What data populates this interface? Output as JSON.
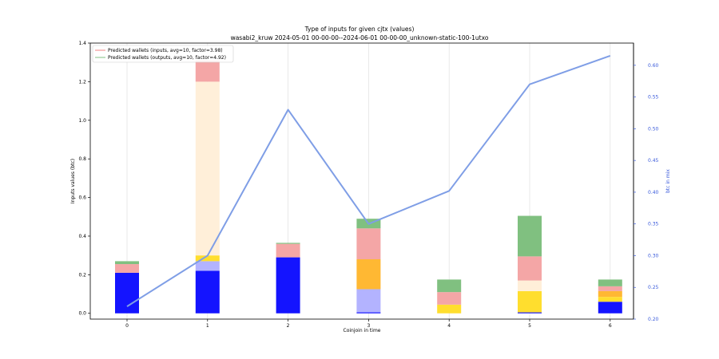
{
  "chart_data": {
    "type": "bar",
    "title": "Type of inputs for given cjtx (values)",
    "subtitle": "wasabi2_kruw 2024-05-01 00-00-00--2024-06-01 00-00-00_unknown-static-100-1utxo",
    "xlabel": "Coinjoin in time",
    "ylabel": "Inputs values (btc)",
    "y2label": "btc in mix",
    "x": [
      0,
      1,
      2,
      3,
      4,
      5,
      6
    ],
    "x_tick_labels": [
      "0",
      "1",
      "2",
      "3",
      "4",
      "5",
      "6"
    ],
    "ylim": [
      -0.03,
      1.4
    ],
    "y_ticks": [
      0.0,
      0.2,
      0.4,
      0.6,
      0.8,
      1.0,
      1.2,
      1.4
    ],
    "y_tick_labels": [
      "0.0",
      "0.2",
      "0.4",
      "0.6",
      "0.8",
      "1.0",
      "1.2",
      "1.4"
    ],
    "y2lim": [
      0.2,
      0.635
    ],
    "y2_ticks": [
      0.2,
      0.25,
      0.3,
      0.35,
      0.4,
      0.45,
      0.5,
      0.55,
      0.6
    ],
    "y2_tick_labels": [
      "0.20",
      "0.25",
      "0.30",
      "0.35",
      "0.40",
      "0.45",
      "0.50",
      "0.55",
      "0.60"
    ],
    "stacked_series": [
      {
        "color": "#1414ff",
        "values": [
          0.21,
          0.22,
          0.29,
          0.005,
          0.0,
          0.005,
          0.06
        ]
      },
      {
        "color": "#b3b3ff",
        "values": [
          0.0,
          0.05,
          0.0,
          0.12,
          0.0,
          0.0,
          0.0
        ]
      },
      {
        "color": "#ffde2e",
        "values": [
          0.0,
          0.03,
          0.0,
          0.0,
          0.045,
          0.11,
          0.025
        ]
      },
      {
        "color": "#ffb833",
        "values": [
          0.0,
          0.0,
          0.0,
          0.155,
          0.0,
          0.0,
          0.03
        ]
      },
      {
        "color": "#ffefd9",
        "values": [
          0.0,
          0.9,
          0.0,
          0.0,
          0.0,
          0.055,
          0.0
        ]
      },
      {
        "color": "#f4a6a6",
        "values": [
          0.045,
          0.11,
          0.07,
          0.16,
          0.065,
          0.125,
          0.025
        ]
      },
      {
        "color": "#80c080",
        "values": [
          0.015,
          0.0,
          0.005,
          0.05,
          0.065,
          0.21,
          0.035
        ]
      }
    ],
    "line_series": {
      "axis": "right",
      "color": "#7f9ee6",
      "values": [
        0.22,
        0.3,
        0.53,
        0.35,
        0.402,
        0.57,
        0.615
      ]
    },
    "legend": {
      "placement": "top-left",
      "entries": [
        {
          "label": "Predicted wallets (inputs, avg=10, factor=3.98)",
          "color": "#f08080"
        },
        {
          "label": "Predicted wallets (outputs, avg=10, factor=4.92)",
          "color": "#80c080"
        }
      ]
    },
    "grid": "vertical"
  }
}
